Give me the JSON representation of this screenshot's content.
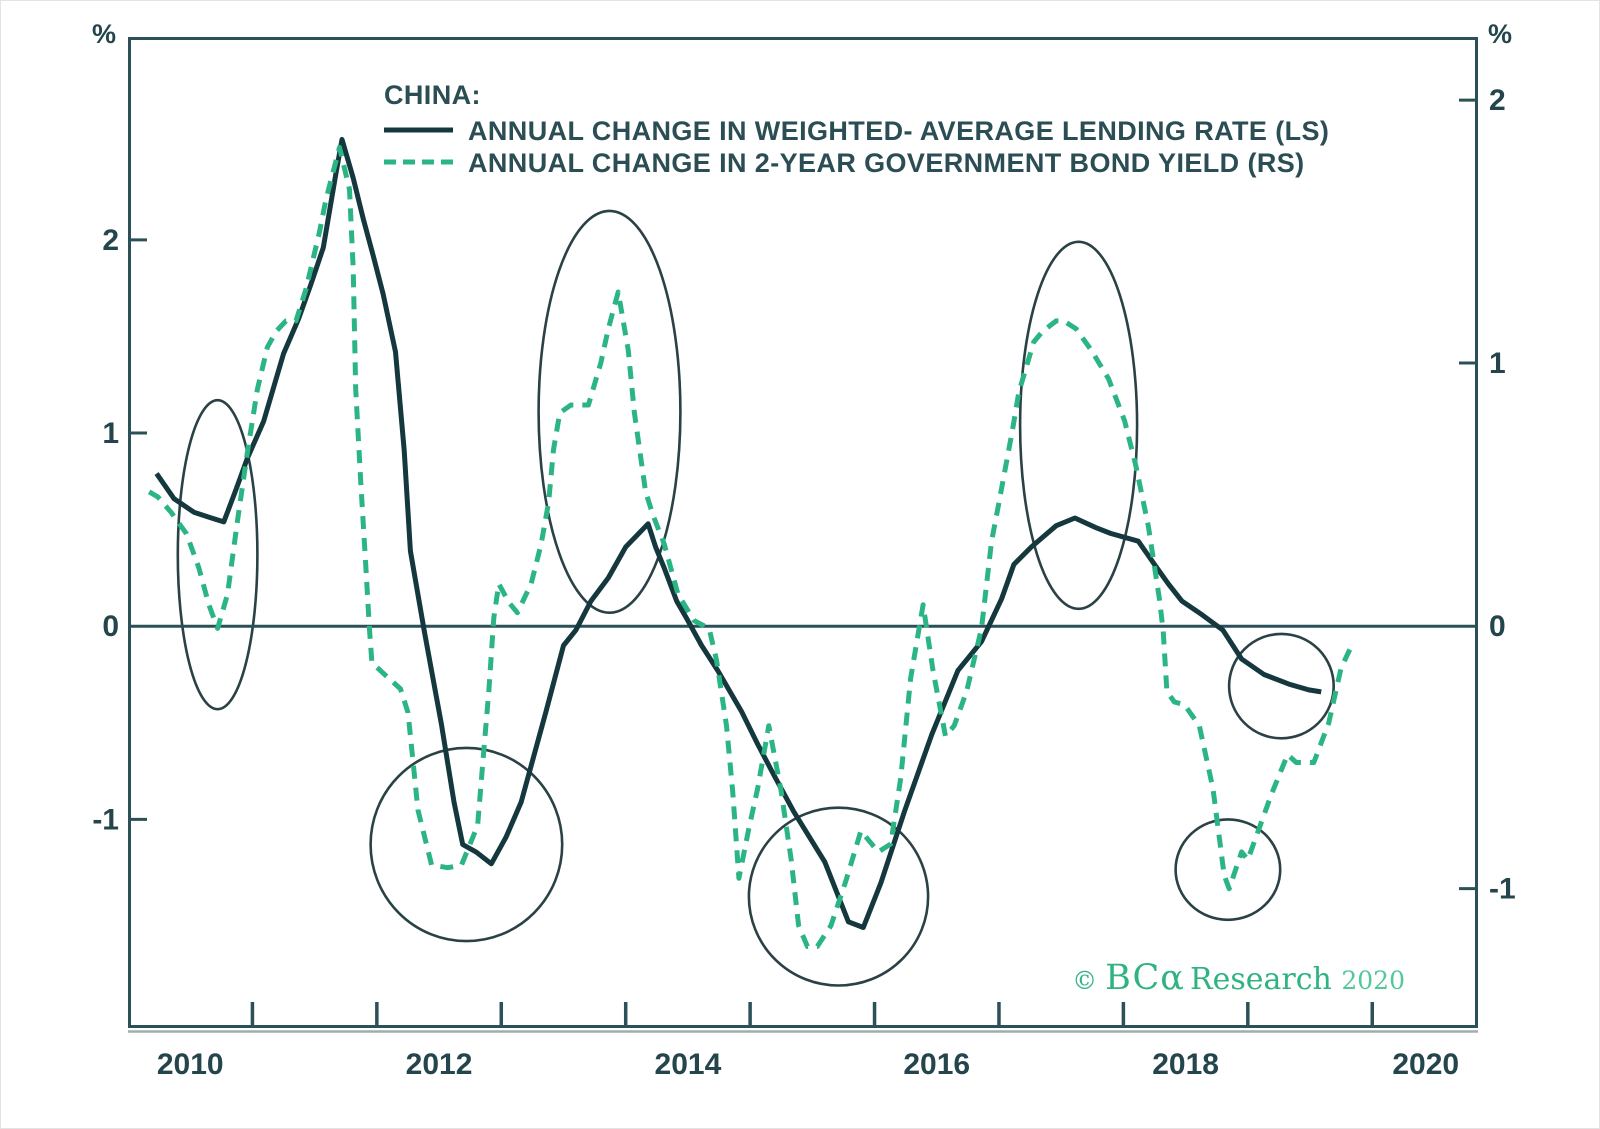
{
  "legend": {
    "title": "CHINA:",
    "series1_label": "ANNUAL CHANGE IN WEIGHTED- AVERAGE LENDING RATE (LS)",
    "series2_label": "ANNUAL CHANGE IN 2-YEAR GOVERNMENT BOND YIELD (RS)"
  },
  "watermark": {
    "copyright": "© ",
    "brand": "BCα",
    "research": " Research ",
    "year": "2020"
  },
  "chart_data": {
    "type": "line",
    "title": "CHINA:",
    "x_axis": {
      "domain": [
        2010,
        2020.85
      ],
      "ticks": [
        2011,
        2012,
        2013,
        2014,
        2015,
        2016,
        2017,
        2018,
        2019,
        2020
      ],
      "labels": [
        {
          "text": "2010",
          "year": 2010.5
        },
        {
          "text": "2012",
          "year": 2012.5
        },
        {
          "text": "2014",
          "year": 2014.5
        },
        {
          "text": "2016",
          "year": 2016.5
        },
        {
          "text": "2018",
          "year": 2018.5
        },
        {
          "text": "2020",
          "year": 2020.43
        }
      ]
    },
    "left_axis": {
      "unit": "%",
      "domain": [
        -2.08,
        3.05
      ],
      "ticks": [
        {
          "v": 2,
          "label": "2"
        },
        {
          "v": 1,
          "label": "1"
        },
        {
          "v": 0,
          "label": "0"
        },
        {
          "v": -1,
          "label": "-1"
        }
      ]
    },
    "right_axis": {
      "unit": "%",
      "domain": [
        -1.53,
        2.24
      ],
      "ticks": [
        {
          "v": 2,
          "label": "2"
        },
        {
          "v": 1,
          "label": "1"
        },
        {
          "v": 0,
          "label": "0"
        },
        {
          "v": -1,
          "label": "-1"
        }
      ]
    },
    "zero_line": 0,
    "grid": false,
    "legend_position": "top-left",
    "colors": {
      "lending_rate": "#14383e",
      "bond_yield": "#2cb584",
      "axis": "#2c5058",
      "annotation": "#2a4145"
    },
    "series": [
      {
        "name": "ANNUAL CHANGE IN WEIGHTED- AVERAGE LENDING RATE (LS)",
        "axis": "left",
        "style": "solid",
        "points": [
          [
            2010.23,
            0.79
          ],
          [
            2010.37,
            0.66
          ],
          [
            2010.53,
            0.59
          ],
          [
            2010.67,
            0.56
          ],
          [
            2010.77,
            0.54
          ],
          [
            2010.87,
            0.71
          ],
          [
            2010.96,
            0.87
          ],
          [
            2011.09,
            1.06
          ],
          [
            2011.25,
            1.41
          ],
          [
            2011.37,
            1.59
          ],
          [
            2011.47,
            1.77
          ],
          [
            2011.57,
            1.96
          ],
          [
            2011.67,
            2.34
          ],
          [
            2011.72,
            2.52
          ],
          [
            2011.81,
            2.32
          ],
          [
            2011.89,
            2.11
          ],
          [
            2011.97,
            1.92
          ],
          [
            2012.05,
            1.72
          ],
          [
            2012.15,
            1.42
          ],
          [
            2012.22,
            0.91
          ],
          [
            2012.27,
            0.39
          ],
          [
            2012.38,
            -0.02
          ],
          [
            2012.52,
            -0.51
          ],
          [
            2012.62,
            -0.91
          ],
          [
            2012.69,
            -1.13
          ],
          [
            2012.8,
            -1.17
          ],
          [
            2012.92,
            -1.23
          ],
          [
            2013.04,
            -1.09
          ],
          [
            2013.16,
            -0.91
          ],
          [
            2013.36,
            -0.44
          ],
          [
            2013.5,
            -0.1
          ],
          [
            2013.6,
            -0.02
          ],
          [
            2013.72,
            0.13
          ],
          [
            2013.86,
            0.25
          ],
          [
            2014.0,
            0.41
          ],
          [
            2014.18,
            0.53
          ],
          [
            2014.24,
            0.41
          ],
          [
            2014.31,
            0.3
          ],
          [
            2014.41,
            0.13
          ],
          [
            2014.49,
            0.04
          ],
          [
            2014.61,
            -0.1
          ],
          [
            2014.74,
            -0.23
          ],
          [
            2014.93,
            -0.44
          ],
          [
            2015.06,
            -0.61
          ],
          [
            2015.19,
            -0.77
          ],
          [
            2015.35,
            -0.96
          ],
          [
            2015.6,
            -1.22
          ],
          [
            2015.79,
            -1.53
          ],
          [
            2015.91,
            -1.56
          ],
          [
            2016.05,
            -1.33
          ],
          [
            2016.24,
            -0.96
          ],
          [
            2016.46,
            -0.56
          ],
          [
            2016.67,
            -0.23
          ],
          [
            2016.86,
            -0.08
          ],
          [
            2017.02,
            0.14
          ],
          [
            2017.12,
            0.32
          ],
          [
            2017.26,
            0.41
          ],
          [
            2017.46,
            0.52
          ],
          [
            2017.61,
            0.56
          ],
          [
            2017.78,
            0.51
          ],
          [
            2017.9,
            0.48
          ],
          [
            2018.12,
            0.44
          ],
          [
            2018.25,
            0.32
          ],
          [
            2018.36,
            0.22
          ],
          [
            2018.47,
            0.13
          ],
          [
            2018.63,
            0.06
          ],
          [
            2018.8,
            -0.02
          ],
          [
            2018.95,
            -0.17
          ],
          [
            2019.13,
            -0.25
          ],
          [
            2019.33,
            -0.3
          ],
          [
            2019.49,
            -0.33
          ],
          [
            2019.59,
            -0.34
          ]
        ]
      },
      {
        "name": "ANNUAL CHANGE IN 2-YEAR GOVERNMENT BOND YIELD (RS)",
        "axis": "right",
        "style": "dashed",
        "points": [
          [
            2010.17,
            0.51
          ],
          [
            2010.24,
            0.49
          ],
          [
            2010.35,
            0.43
          ],
          [
            2010.47,
            0.35
          ],
          [
            2010.57,
            0.22
          ],
          [
            2010.65,
            0.08
          ],
          [
            2010.72,
            -0.01
          ],
          [
            2010.8,
            0.12
          ],
          [
            2010.88,
            0.4
          ],
          [
            2010.96,
            0.66
          ],
          [
            2011.04,
            0.9
          ],
          [
            2011.12,
            1.06
          ],
          [
            2011.19,
            1.12
          ],
          [
            2011.27,
            1.16
          ],
          [
            2011.35,
            1.16
          ],
          [
            2011.43,
            1.28
          ],
          [
            2011.54,
            1.5
          ],
          [
            2011.59,
            1.62
          ],
          [
            2011.7,
            1.82
          ],
          [
            2011.78,
            1.66
          ],
          [
            2011.81,
            1.36
          ],
          [
            2011.83,
            0.9
          ],
          [
            2011.87,
            0.55
          ],
          [
            2011.91,
            0.24
          ],
          [
            2011.94,
            -0.01
          ],
          [
            2011.96,
            -0.14
          ],
          [
            2012.05,
            -0.18
          ],
          [
            2012.19,
            -0.24
          ],
          [
            2012.25,
            -0.33
          ],
          [
            2012.3,
            -0.56
          ],
          [
            2012.33,
            -0.7
          ],
          [
            2012.44,
            -0.91
          ],
          [
            2012.57,
            -0.92
          ],
          [
            2012.68,
            -0.91
          ],
          [
            2012.81,
            -0.76
          ],
          [
            2012.86,
            -0.47
          ],
          [
            2012.9,
            -0.25
          ],
          [
            2012.94,
            0.03
          ],
          [
            2012.98,
            0.16
          ],
          [
            2013.06,
            0.09
          ],
          [
            2013.13,
            0.05
          ],
          [
            2013.24,
            0.16
          ],
          [
            2013.32,
            0.31
          ],
          [
            2013.38,
            0.47
          ],
          [
            2013.42,
            0.67
          ],
          [
            2013.47,
            0.81
          ],
          [
            2013.56,
            0.84
          ],
          [
            2013.7,
            0.84
          ],
          [
            2013.8,
            1.0
          ],
          [
            2013.86,
            1.13
          ],
          [
            2013.94,
            1.27
          ],
          [
            2014.02,
            1.05
          ],
          [
            2014.07,
            0.81
          ],
          [
            2014.16,
            0.51
          ],
          [
            2014.22,
            0.42
          ],
          [
            2014.31,
            0.31
          ],
          [
            2014.42,
            0.12
          ],
          [
            2014.55,
            0.02
          ],
          [
            2014.67,
            -0.01
          ],
          [
            2014.73,
            -0.13
          ],
          [
            2014.81,
            -0.38
          ],
          [
            2014.86,
            -0.63
          ],
          [
            2014.91,
            -0.96
          ],
          [
            2014.99,
            -0.77
          ],
          [
            2015.06,
            -0.62
          ],
          [
            2015.15,
            -0.38
          ],
          [
            2015.25,
            -0.63
          ],
          [
            2015.33,
            -0.89
          ],
          [
            2015.39,
            -1.14
          ],
          [
            2015.46,
            -1.22
          ],
          [
            2015.54,
            -1.22
          ],
          [
            2015.65,
            -1.14
          ],
          [
            2015.77,
            -0.97
          ],
          [
            2015.89,
            -0.78
          ],
          [
            2016.03,
            -0.86
          ],
          [
            2016.13,
            -0.83
          ],
          [
            2016.21,
            -0.58
          ],
          [
            2016.29,
            -0.2
          ],
          [
            2016.39,
            0.08
          ],
          [
            2016.47,
            -0.17
          ],
          [
            2016.57,
            -0.42
          ],
          [
            2016.64,
            -0.38
          ],
          [
            2016.74,
            -0.25
          ],
          [
            2016.86,
            -0.01
          ],
          [
            2016.94,
            0.32
          ],
          [
            2017.0,
            0.47
          ],
          [
            2017.11,
            0.75
          ],
          [
            2017.16,
            0.89
          ],
          [
            2017.28,
            1.08
          ],
          [
            2017.35,
            1.12
          ],
          [
            2017.46,
            1.16
          ],
          [
            2017.52,
            1.16
          ],
          [
            2017.62,
            1.13
          ],
          [
            2017.74,
            1.05
          ],
          [
            2017.88,
            0.94
          ],
          [
            2018.01,
            0.78
          ],
          [
            2018.1,
            0.61
          ],
          [
            2018.2,
            0.38
          ],
          [
            2018.29,
            0.1
          ],
          [
            2018.32,
            -0.02
          ],
          [
            2018.35,
            -0.25
          ],
          [
            2018.41,
            -0.29
          ],
          [
            2018.49,
            -0.3
          ],
          [
            2018.61,
            -0.38
          ],
          [
            2018.72,
            -0.62
          ],
          [
            2018.81,
            -0.95
          ],
          [
            2018.85,
            -1.0
          ],
          [
            2018.95,
            -0.86
          ],
          [
            2019.0,
            -0.89
          ],
          [
            2019.19,
            -0.64
          ],
          [
            2019.32,
            -0.49
          ],
          [
            2019.39,
            -0.52
          ],
          [
            2019.53,
            -0.52
          ],
          [
            2019.65,
            -0.37
          ],
          [
            2019.75,
            -0.16
          ],
          [
            2019.82,
            -0.09
          ]
        ]
      }
    ],
    "annotations": {
      "ellipses": [
        {
          "x": 2010.72,
          "y": 0.37,
          "rx": 0.32,
          "ry": 0.8
        },
        {
          "x": 2012.72,
          "y": -1.13,
          "rx": 0.77,
          "ry": 0.5
        },
        {
          "x": 2013.87,
          "y": 1.11,
          "rx": 0.57,
          "ry": 1.04
        },
        {
          "x": 2015.71,
          "y": -1.4,
          "rx": 0.72,
          "ry": 0.46
        },
        {
          "x": 2017.64,
          "y": 1.04,
          "rx": 0.47,
          "ry": 0.95
        },
        {
          "x": 2019.27,
          "y": -0.31,
          "rx": 0.42,
          "ry": 0.27
        },
        {
          "x": 2018.84,
          "y": -1.26,
          "rx": 0.42,
          "ry": 0.26
        }
      ]
    }
  }
}
